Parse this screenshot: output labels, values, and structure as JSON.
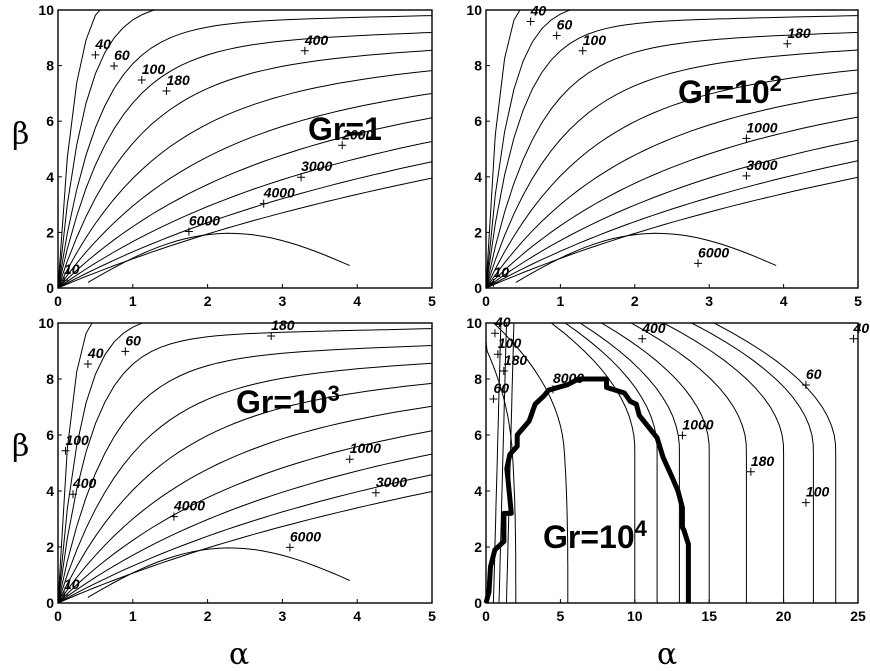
{
  "chart_data": [
    {
      "type": "contour",
      "panel": "top-left",
      "annotation": {
        "text": "Gr=1",
        "base": "Gr=1",
        "exponent": ""
      },
      "xlabel": "",
      "ylabel": "β",
      "xlim": [
        0,
        5
      ],
      "ylim": [
        0,
        10
      ],
      "xticks": [
        "0",
        "1",
        "2",
        "3",
        "4",
        "5"
      ],
      "yticks": [
        "0",
        "2",
        "4",
        "6",
        "8",
        "10"
      ],
      "contour_labels": [
        {
          "text": "10",
          "x": 0.08,
          "y": 0.5
        },
        {
          "text": "40",
          "x": 0.5,
          "y": 8.6
        },
        {
          "text": "60",
          "x": 0.75,
          "y": 8.2
        },
        {
          "text": "100",
          "x": 1.12,
          "y": 7.7
        },
        {
          "text": "180",
          "x": 1.45,
          "y": 7.3
        },
        {
          "text": "400",
          "x": 3.3,
          "y": 8.75
        },
        {
          "text": "2000",
          "x": 3.8,
          "y": 5.35
        },
        {
          "text": "3000",
          "x": 3.25,
          "y": 4.2
        },
        {
          "text": "4000",
          "x": 2.75,
          "y": 3.25
        },
        {
          "text": "6000",
          "x": 1.75,
          "y": 2.25
        }
      ]
    },
    {
      "type": "contour",
      "panel": "top-right",
      "annotation": {
        "text": "Gr=10^2",
        "base": "Gr=10",
        "exponent": "2"
      },
      "xlabel": "",
      "ylabel": "",
      "xlim": [
        0,
        5
      ],
      "ylim": [
        0,
        10
      ],
      "xticks": [
        "0",
        "1",
        "2",
        "3",
        "4",
        "5"
      ],
      "yticks": [
        "0",
        "2",
        "4",
        "6",
        "8",
        "10"
      ],
      "contour_labels": [
        {
          "text": "10",
          "x": 0.1,
          "y": 0.4
        },
        {
          "text": "40",
          "x": 0.6,
          "y": 9.8
        },
        {
          "text": "60",
          "x": 0.95,
          "y": 9.3
        },
        {
          "text": "100",
          "x": 1.3,
          "y": 8.75
        },
        {
          "text": "180",
          "x": 4.05,
          "y": 9.0
        },
        {
          "text": "1000",
          "x": 3.5,
          "y": 5.6
        },
        {
          "text": "3000",
          "x": 3.5,
          "y": 4.25
        },
        {
          "text": "6000",
          "x": 2.85,
          "y": 1.1
        }
      ]
    },
    {
      "type": "contour",
      "panel": "bottom-left",
      "annotation": {
        "text": "Gr=10^3",
        "base": "Gr=10",
        "exponent": "3"
      },
      "xlabel": "α",
      "ylabel": "β",
      "xlim": [
        0,
        5
      ],
      "ylim": [
        0,
        10
      ],
      "xticks": [
        "0",
        "1",
        "2",
        "3",
        "4",
        "5"
      ],
      "yticks": [
        "0",
        "2",
        "4",
        "6",
        "8",
        "10"
      ],
      "contour_labels": [
        {
          "text": "10",
          "x": 0.08,
          "y": 0.5
        },
        {
          "text": "40",
          "x": 0.4,
          "y": 8.75
        },
        {
          "text": "60",
          "x": 0.9,
          "y": 9.2
        },
        {
          "text": "100",
          "x": 0.1,
          "y": 5.65
        },
        {
          "text": "180",
          "x": 2.85,
          "y": 9.75
        },
        {
          "text": "400",
          "x": 0.2,
          "y": 4.1
        },
        {
          "text": "1000",
          "x": 3.9,
          "y": 5.35
        },
        {
          "text": "3000",
          "x": 4.25,
          "y": 4.15
        },
        {
          "text": "4000",
          "x": 1.55,
          "y": 3.3
        },
        {
          "text": "6000",
          "x": 3.1,
          "y": 2.2
        }
      ]
    },
    {
      "type": "contour",
      "panel": "bottom-right",
      "annotation": {
        "text": "Gr=10^4",
        "base": "Gr=10",
        "exponent": "4"
      },
      "xlabel": "α",
      "ylabel": "",
      "xlim": [
        0,
        25
      ],
      "ylim": [
        0,
        10
      ],
      "xticks": [
        "0",
        "5",
        "10",
        "15",
        "20",
        "25"
      ],
      "yticks": [
        "0",
        "2",
        "4",
        "6",
        "8",
        "10"
      ],
      "contour_labels": [
        {
          "text": "40",
          "x": 0.6,
          "y": 9.85
        },
        {
          "text": "100",
          "x": 0.8,
          "y": 9.1
        },
        {
          "text": "180",
          "x": 1.2,
          "y": 8.5
        },
        {
          "text": "60",
          "x": 0.5,
          "y": 7.5
        },
        {
          "text": "8000",
          "x": 4.5,
          "y": 7.85
        },
        {
          "text": "400",
          "x": 10.5,
          "y": 9.65
        },
        {
          "text": "1000",
          "x": 13.2,
          "y": 6.2
        },
        {
          "text": "60",
          "x": 21.5,
          "y": 8.0
        },
        {
          "text": "40",
          "x": 24.7,
          "y": 9.65
        },
        {
          "text": "180",
          "x": 17.8,
          "y": 4.9
        },
        {
          "text": "100",
          "x": 21.5,
          "y": 3.8
        }
      ],
      "thick_contour": {
        "x": [
          0,
          0.2,
          0.3,
          0.6,
          1.2,
          1.2,
          1.7,
          1.5,
          1.4,
          1.6,
          2.1,
          2.1,
          2.9,
          3.3,
          3.9,
          4.2,
          5.5,
          6.2,
          8.1,
          8.1,
          9.3,
          9.7,
          10.1,
          10.3,
          11.5,
          11.9,
          12.5,
          12.9,
          13.2,
          13.2,
          13.3,
          13.6,
          13.6
        ],
        "y": [
          0,
          0.4,
          1.3,
          1.9,
          2.2,
          3.2,
          3.2,
          4.3,
          4.8,
          5.3,
          5.6,
          6.0,
          6.5,
          7.1,
          7.4,
          7.6,
          7.8,
          8.0,
          8.0,
          7.7,
          7.5,
          7.2,
          7.1,
          6.7,
          5.9,
          5.2,
          4.5,
          4.0,
          3.4,
          2.7,
          2.6,
          2.1,
          0
        ]
      }
    }
  ]
}
